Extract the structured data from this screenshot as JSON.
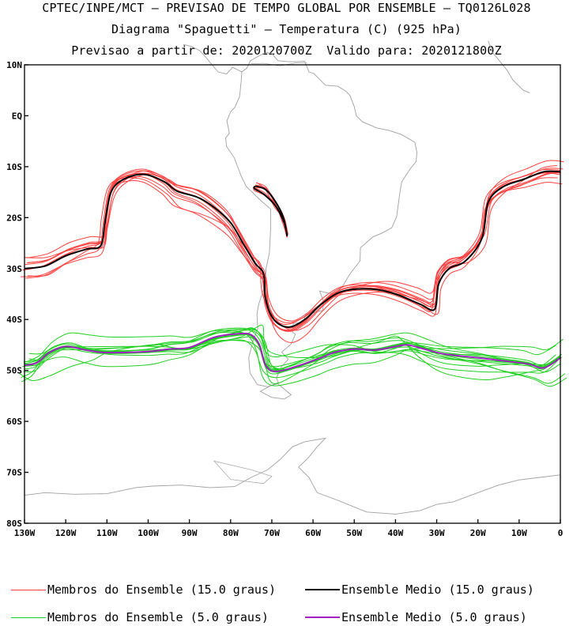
{
  "titles": {
    "line1": "CPTEC/INPE/MCT – PREVISAO DE TEMPO GLOBAL POR ENSEMBLE – TQ0126L028",
    "line2": "Diagrama \"Spaguetti\" – Temperatura (C) (925 hPa)",
    "line3": "Previsao a partir de: 2020120700Z  Valido para: 2020121800Z"
  },
  "map": {
    "lon_range": [
      -130,
      0
    ],
    "lat_range": [
      -80,
      10
    ],
    "lat_ticks": [
      {
        "value": 10,
        "label": "10N"
      },
      {
        "value": 0,
        "label": "EQ"
      },
      {
        "value": -10,
        "label": "10S"
      },
      {
        "value": -20,
        "label": "20S"
      },
      {
        "value": -30,
        "label": "30S"
      },
      {
        "value": -40,
        "label": "40S"
      },
      {
        "value": -50,
        "label": "50S"
      },
      {
        "value": -60,
        "label": "60S"
      },
      {
        "value": -70,
        "label": "70S"
      },
      {
        "value": -80,
        "label": "80S"
      }
    ],
    "lon_ticks": [
      {
        "value": -130,
        "label": "130W"
      },
      {
        "value": -120,
        "label": "120W"
      },
      {
        "value": -110,
        "label": "110W"
      },
      {
        "value": -100,
        "label": "100W"
      },
      {
        "value": -90,
        "label": "90W"
      },
      {
        "value": -80,
        "label": "80W"
      },
      {
        "value": -70,
        "label": "70W"
      },
      {
        "value": -60,
        "label": "60W"
      },
      {
        "value": -50,
        "label": "50W"
      },
      {
        "value": -40,
        "label": "40W"
      },
      {
        "value": -30,
        "label": "30W"
      },
      {
        "value": -20,
        "label": "20W"
      },
      {
        "value": -10,
        "label": "10W"
      },
      {
        "value": 0,
        "label": "0"
      }
    ],
    "colors": {
      "members_15": "#ff4040",
      "mean_15": "#000000",
      "members_5": "#20d020",
      "mean_5": "#a020c0",
      "coastline": "#a0a0a0"
    }
  },
  "contours": {
    "mean_15": {
      "main": [
        [
          -130,
          -30
        ],
        [
          -125,
          -29.5
        ],
        [
          -120,
          -27.5
        ],
        [
          -115,
          -26.2
        ],
        [
          -111.5,
          -25.5
        ],
        [
          -110.5,
          -21
        ],
        [
          -109,
          -15
        ],
        [
          -106,
          -12.5
        ],
        [
          -101,
          -11.5
        ],
        [
          -96,
          -13
        ],
        [
          -93,
          -14.8
        ],
        [
          -88,
          -16
        ],
        [
          -84,
          -18
        ],
        [
          -80,
          -21
        ],
        [
          -77,
          -25
        ],
        [
          -74,
          -29
        ],
        [
          -72,
          -31
        ],
        [
          -71.5,
          -36
        ],
        [
          -69.5,
          -40
        ],
        [
          -66,
          -41.5
        ],
        [
          -62,
          -40
        ],
        [
          -58,
          -37
        ],
        [
          -53,
          -34.5
        ],
        [
          -46,
          -34
        ],
        [
          -40,
          -35
        ],
        [
          -34,
          -37
        ],
        [
          -30.5,
          -38
        ],
        [
          -29.5,
          -33
        ],
        [
          -27,
          -30
        ],
        [
          -23,
          -28.5
        ],
        [
          -19,
          -24
        ],
        [
          -17.5,
          -17
        ],
        [
          -14,
          -14
        ],
        [
          -9,
          -12.5
        ],
        [
          -4,
          -11
        ],
        [
          0,
          -11
        ]
      ],
      "andes_loop": [
        [
          -74,
          -13.8
        ],
        [
          -71.5,
          -14.5
        ],
        [
          -69,
          -17
        ],
        [
          -67.2,
          -20
        ],
        [
          -66.3,
          -23.5
        ],
        [
          -67,
          -21
        ],
        [
          -69,
          -17.8
        ],
        [
          -71.8,
          -15.5
        ],
        [
          -74.2,
          -14.3
        ],
        [
          -74,
          -13.8
        ]
      ]
    },
    "mean_5": [
      [
        -130,
        -49
      ],
      [
        -127,
        -48.5
      ],
      [
        -124,
        -46.5
      ],
      [
        -120,
        -45.3
      ],
      [
        -115,
        -46
      ],
      [
        -110,
        -46.5
      ],
      [
        -100,
        -46.3
      ],
      [
        -95,
        -45.8
      ],
      [
        -90,
        -45.5
      ],
      [
        -84,
        -43.5
      ],
      [
        -78,
        -42.8
      ],
      [
        -75,
        -43
      ],
      [
        -73,
        -45
      ],
      [
        -71.5,
        -49
      ],
      [
        -69,
        -50.2
      ],
      [
        -64,
        -49.2
      ],
      [
        -58,
        -47.5
      ],
      [
        -55,
        -46.5
      ],
      [
        -50,
        -45.8
      ],
      [
        -45,
        -46
      ],
      [
        -40,
        -45.3
      ],
      [
        -37,
        -45
      ],
      [
        -33,
        -45.8
      ],
      [
        -28,
        -46.8
      ],
      [
        -20,
        -47.5
      ],
      [
        -15,
        -48
      ],
      [
        -8,
        -48.7
      ],
      [
        -4,
        -49.5
      ],
      [
        0,
        -47.5
      ]
    ]
  },
  "legend": {
    "members_15": "Membros do Ensemble (15.0 graus)",
    "mean_15": "Ensemble Medio (15.0 graus)",
    "members_5": "Membros do Ensemble (5.0 graus)",
    "mean_5": "Ensemble Medio (5.0 graus)"
  }
}
